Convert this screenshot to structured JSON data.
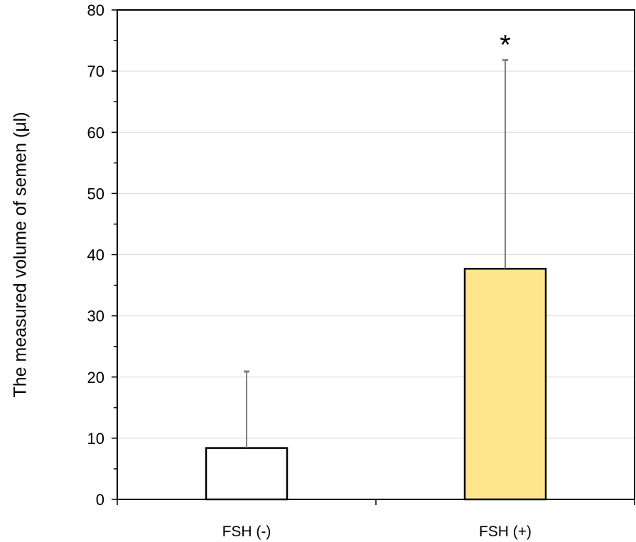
{
  "chart_data": {
    "type": "bar",
    "categories": [
      "FSH (-)",
      "FSH (+)"
    ],
    "values": [
      8.4,
      37.7
    ],
    "error_upper": [
      20.9,
      71.8
    ],
    "bar_colors": [
      "#ffffff",
      "#ffe68c"
    ],
    "bar_edge_color": "#000000",
    "error_bar_color": "#808080",
    "ylabel": "The measured volume of semen (μl)",
    "xlabel": "",
    "ylim": [
      0,
      80
    ],
    "y_ticks": [
      "0",
      "10",
      "20",
      "30",
      "40",
      "50",
      "60",
      "70",
      "80"
    ],
    "grid": "horizontal",
    "grid_color": "#d9d9d9",
    "annotations": [
      {
        "category": "FSH (+)",
        "text": "*"
      }
    ]
  }
}
